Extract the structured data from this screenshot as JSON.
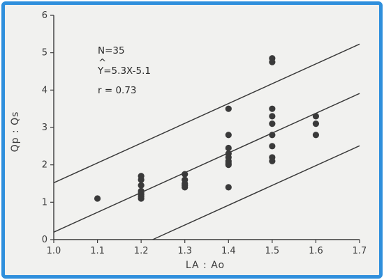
{
  "chart_data": {
    "type": "scatter",
    "title": "",
    "xlabel": "LA : Ao",
    "ylabel": "Qp : Qs",
    "xlim": [
      1.0,
      1.7
    ],
    "ylim": [
      0,
      6
    ],
    "xticks": [
      "1.0",
      "1.1",
      "1.2",
      "1.3",
      "1.4",
      "1.5",
      "1.6",
      "1.7"
    ],
    "yticks": [
      "0",
      "1",
      "2",
      "3",
      "4",
      "5",
      "6"
    ],
    "grid": false,
    "annotations": {
      "n": "N=35",
      "hat": "^",
      "equation": "Y=5.3X-5.1",
      "r": "r = 0.73"
    },
    "lines": [
      {
        "slope": 5.3,
        "intercept": -5.1,
        "role": "regression"
      },
      {
        "slope": 5.3,
        "intercept": -3.78,
        "role": "upper-bound"
      },
      {
        "slope": 5.3,
        "intercept": -6.5,
        "role": "lower-bound"
      }
    ],
    "points": [
      [
        1.1,
        1.1
      ],
      [
        1.2,
        1.1
      ],
      [
        1.2,
        1.15
      ],
      [
        1.2,
        1.2
      ],
      [
        1.2,
        1.3
      ],
      [
        1.2,
        1.45
      ],
      [
        1.2,
        1.6
      ],
      [
        1.2,
        1.7
      ],
      [
        1.3,
        1.4
      ],
      [
        1.3,
        1.5
      ],
      [
        1.3,
        1.6
      ],
      [
        1.3,
        1.75
      ],
      [
        1.4,
        1.4
      ],
      [
        1.4,
        2.0
      ],
      [
        1.4,
        2.1
      ],
      [
        1.4,
        2.2
      ],
      [
        1.4,
        2.3
      ],
      [
        1.4,
        2.45
      ],
      [
        1.4,
        2.8
      ],
      [
        1.4,
        3.5
      ],
      [
        1.5,
        2.1
      ],
      [
        1.5,
        2.2
      ],
      [
        1.5,
        2.5
      ],
      [
        1.5,
        2.8
      ],
      [
        1.5,
        3.1
      ],
      [
        1.5,
        3.3
      ],
      [
        1.5,
        3.5
      ],
      [
        1.5,
        4.75
      ],
      [
        1.5,
        4.85
      ],
      [
        1.6,
        2.8
      ],
      [
        1.6,
        3.1
      ],
      [
        1.6,
        3.3
      ],
      [
        1.4,
        2.05
      ],
      [
        1.3,
        1.45
      ],
      [
        1.2,
        1.25
      ]
    ],
    "colors": {
      "frame": "#2f8fdc",
      "marker": "#3a3a3a",
      "line": "#3a3a3a",
      "background": "#f1f1ef"
    }
  }
}
